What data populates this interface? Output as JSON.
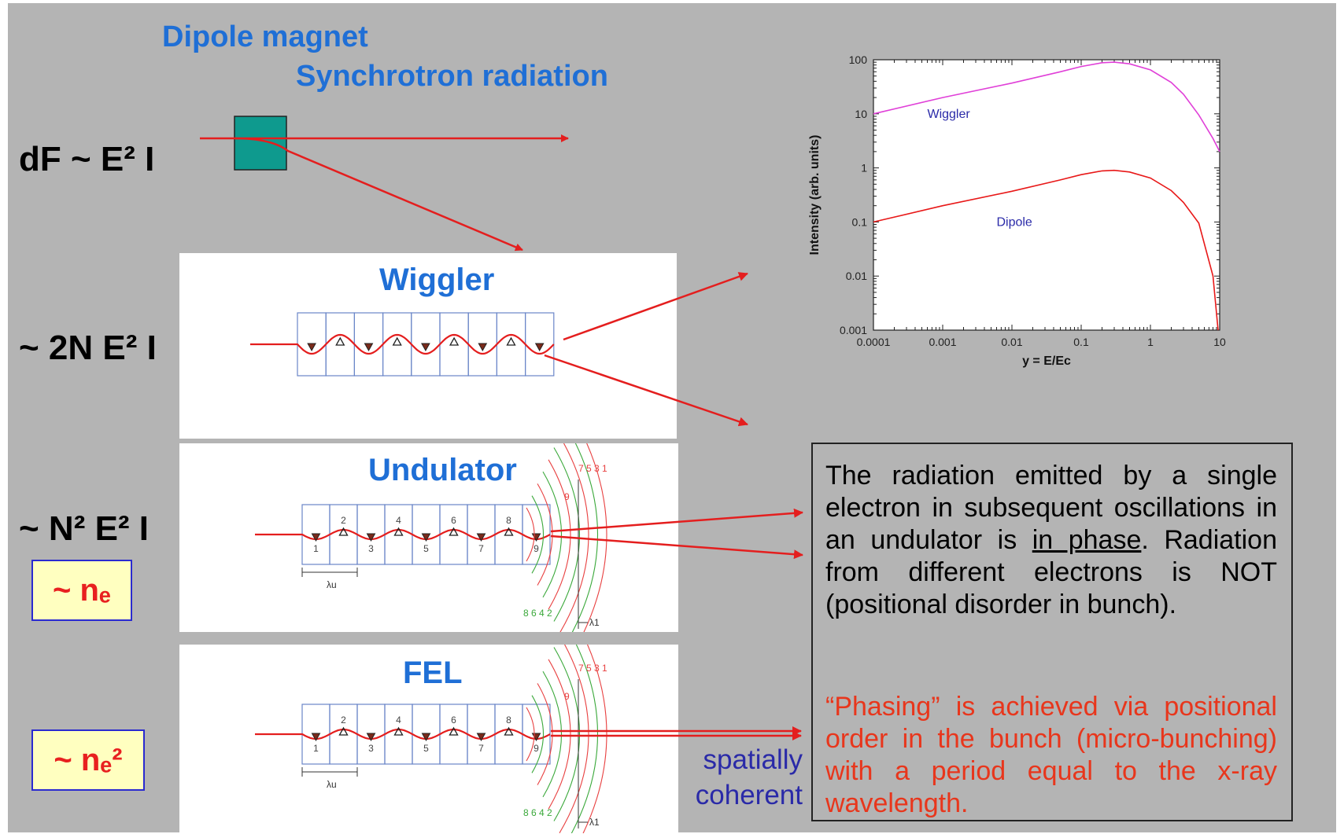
{
  "header": {
    "dipole_title": "Dipole magnet",
    "sr_title": "Synchrotron radiation"
  },
  "formulas": {
    "dipole": "dF ~ E² I",
    "wiggler": "~ 2N E² I",
    "undulator": "~ N² E² I"
  },
  "scaling_boxes": {
    "undulator": "~ nₑ",
    "fel": "~ nₑ²"
  },
  "panels": {
    "wiggler_title": "Wiggler",
    "undulator_title": "Undulator",
    "fel_title": "FEL",
    "period_label": "λu",
    "wavelength_label": "λ1",
    "pole_numbers": [
      "1",
      "2",
      "3",
      "4",
      "5",
      "6",
      "7",
      "8",
      "9"
    ],
    "wave_labels_top": "7 5 3 1",
    "wave_label_9": "9",
    "wave_labels_bottom": "8   6 4 2"
  },
  "fel_note": {
    "line1": "spatially",
    "line2": "coherent"
  },
  "description": {
    "para1_part1": "The radiation emitted by a single electron in subsequent oscillations in an undulator is ",
    "para1_underlined": "in phase",
    "para1_part2": ". Radiation from different electrons is NOT (positional disorder in bunch).",
    "para2": "“Phasing” is achieved via positional order in the bunch (micro-bunching) with a period equal to the x-ray wavelength."
  },
  "colors": {
    "background": "#b4b4b4",
    "title_blue": "#1f6fd6",
    "arrow_red": "#e41e1e",
    "note_red": "#e8361c",
    "magnet_teal": "#0e9a8e",
    "wiggler_curve": "#e040d8",
    "dipole_curve": "#e81818"
  },
  "chart_data": {
    "type": "line",
    "xlabel": "y = E/Ec",
    "ylabel": "Intensity (arb. units)",
    "x_scale": "log",
    "y_scale": "log",
    "xlim": [
      0.0001,
      10
    ],
    "ylim": [
      0.001,
      100
    ],
    "x_tick_labels": [
      "0.0001",
      "0.001",
      "0.01",
      "0.1",
      "1",
      "10"
    ],
    "y_tick_labels": [
      "0.001",
      "0.01",
      "0.1",
      "1",
      "10",
      "100"
    ],
    "grid": false,
    "series": [
      {
        "name": "Wiggler",
        "color": "#e040d8",
        "x": [
          0.0001,
          0.001,
          0.01,
          0.05,
          0.1,
          0.2,
          0.3,
          0.5,
          1,
          2,
          3,
          5,
          8,
          10
        ],
        "y": [
          10,
          20,
          37,
          60,
          75,
          88,
          90,
          84,
          65,
          38,
          23,
          9.5,
          3.5,
          2.0
        ]
      },
      {
        "name": "Dipole",
        "color": "#e81818",
        "x": [
          0.0001,
          0.001,
          0.01,
          0.05,
          0.1,
          0.2,
          0.3,
          0.5,
          1,
          2,
          3,
          5,
          8,
          9.5
        ],
        "y": [
          0.1,
          0.2,
          0.37,
          0.6,
          0.75,
          0.88,
          0.9,
          0.84,
          0.65,
          0.38,
          0.23,
          0.095,
          0.01,
          0.001
        ]
      }
    ]
  }
}
